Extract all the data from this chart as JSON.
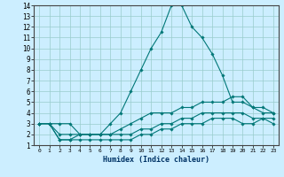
{
  "xlabel": "Humidex (Indice chaleur)",
  "background_color": "#cceeff",
  "grid_color": "#99cccc",
  "line_color": "#007777",
  "xlim": [
    -0.5,
    23.5
  ],
  "ylim": [
    1,
    14
  ],
  "xticks": [
    0,
    1,
    2,
    3,
    4,
    5,
    6,
    7,
    8,
    9,
    10,
    11,
    12,
    13,
    14,
    15,
    16,
    17,
    18,
    19,
    20,
    21,
    22,
    23
  ],
  "yticks": [
    1,
    2,
    3,
    4,
    5,
    6,
    7,
    8,
    9,
    10,
    11,
    12,
    13,
    14
  ],
  "lines": [
    {
      "x": [
        0,
        1,
        2,
        3,
        4,
        5,
        6,
        7,
        8,
        9,
        10,
        11,
        12,
        13,
        14,
        15,
        16,
        17,
        18,
        19,
        20,
        21,
        22,
        23
      ],
      "y": [
        3,
        3,
        3,
        3,
        2,
        2,
        2,
        3,
        4,
        6,
        8,
        10,
        11.5,
        14,
        14,
        12,
        11,
        9.5,
        7.5,
        5,
        5,
        4.5,
        4,
        4
      ]
    },
    {
      "x": [
        0,
        1,
        2,
        3,
        4,
        5,
        6,
        7,
        8,
        9,
        10,
        11,
        12,
        13,
        14,
        15,
        16,
        17,
        18,
        19,
        20,
        21,
        22,
        23
      ],
      "y": [
        3,
        3,
        2,
        2,
        2,
        2,
        2,
        2,
        2.5,
        3,
        3.5,
        4,
        4,
        4,
        4.5,
        4.5,
        5,
        5,
        5,
        5.5,
        5.5,
        4.5,
        4.5,
        4
      ]
    },
    {
      "x": [
        0,
        1,
        2,
        3,
        4,
        5,
        6,
        7,
        8,
        9,
        10,
        11,
        12,
        13,
        14,
        15,
        16,
        17,
        18,
        19,
        20,
        21,
        22,
        23
      ],
      "y": [
        3,
        3,
        1.5,
        1.5,
        2,
        2,
        2,
        2,
        2,
        2,
        2.5,
        2.5,
        3,
        3,
        3.5,
        3.5,
        4,
        4,
        4,
        4,
        4,
        3.5,
        3.5,
        3.5
      ]
    },
    {
      "x": [
        0,
        1,
        2,
        3,
        4,
        5,
        6,
        7,
        8,
        9,
        10,
        11,
        12,
        13,
        14,
        15,
        16,
        17,
        18,
        19,
        20,
        21,
        22,
        23
      ],
      "y": [
        3,
        3,
        1.5,
        1.5,
        1.5,
        1.5,
        1.5,
        1.5,
        1.5,
        1.5,
        2,
        2,
        2.5,
        2.5,
        3,
        3,
        3,
        3.5,
        3.5,
        3.5,
        3,
        3,
        3.5,
        3
      ]
    }
  ]
}
